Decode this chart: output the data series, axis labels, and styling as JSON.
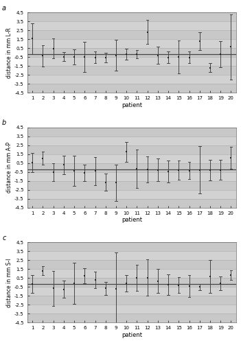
{
  "panels": [
    {
      "label": "a",
      "ylabel": "distance in mm L-R",
      "means": [
        1.55,
        -0.35,
        0.45,
        -0.45,
        -0.5,
        -0.5,
        -0.55,
        -0.55,
        -0.3,
        -0.2,
        -0.2,
        2.3,
        -0.3,
        -0.55,
        -0.5,
        -0.55,
        1.25,
        -1.7,
        -0.2,
        0.65
      ],
      "errors": [
        1.75,
        1.2,
        1.1,
        0.5,
        0.85,
        1.7,
        0.65,
        0.55,
        1.7,
        0.6,
        0.45,
        1.35,
        0.95,
        0.65,
        1.85,
        0.65,
        1.0,
        0.5,
        1.45,
        3.65
      ]
    },
    {
      "label": "b",
      "ylabel": "distance in mm A-P",
      "means": [
        0.55,
        1.05,
        -0.5,
        0.3,
        -0.35,
        -0.6,
        -0.4,
        -1.65,
        -1.7,
        1.75,
        -0.1,
        -0.2,
        -0.25,
        -0.45,
        -0.3,
        -0.35,
        -0.25,
        -0.3,
        -0.25,
        1.1
      ],
      "errors": [
        1.1,
        0.75,
        1.0,
        1.05,
        1.7,
        0.95,
        1.6,
        0.95,
        2.05,
        1.1,
        2.15,
        1.45,
        1.25,
        1.2,
        1.1,
        0.95,
        2.65,
        1.15,
        1.1,
        1.2
      ]
    },
    {
      "label": "c",
      "ylabel": "distance in mm S-I",
      "means": [
        -0.15,
        1.3,
        -0.65,
        -0.75,
        -0.1,
        0.75,
        0.3,
        -0.65,
        -0.7,
        -0.1,
        0.5,
        0.55,
        0.15,
        -0.25,
        -0.3,
        -0.4,
        -0.5,
        0.7,
        -0.1,
        0.85
      ],
      "errors": [
        1.0,
        0.5,
        1.95,
        0.95,
        2.3,
        0.85,
        0.95,
        0.75,
        4.05,
        0.9,
        1.45,
        2.05,
        1.35,
        1.15,
        0.9,
        1.2,
        0.35,
        1.85,
        0.75,
        0.55
      ]
    }
  ],
  "n_patients": 20,
  "ylim": [
    -4.5,
    4.5
  ],
  "yticks": [
    -4.5,
    -3.5,
    -2.5,
    -1.5,
    -0.5,
    0.5,
    1.5,
    2.5,
    3.5,
    4.5
  ],
  "hline_y": -0.2,
  "bg_color": "#c8c8c8",
  "band_color_light": "#d4d4d4",
  "band_color_dark": "#c0c0c0",
  "line_color": "#444444",
  "marker_color": "#222222",
  "xlabel": "patient",
  "panel_label_fontsize": 7,
  "label_fontsize": 5.5,
  "tick_fontsize": 5.0,
  "xlabel_fontsize": 6.0
}
